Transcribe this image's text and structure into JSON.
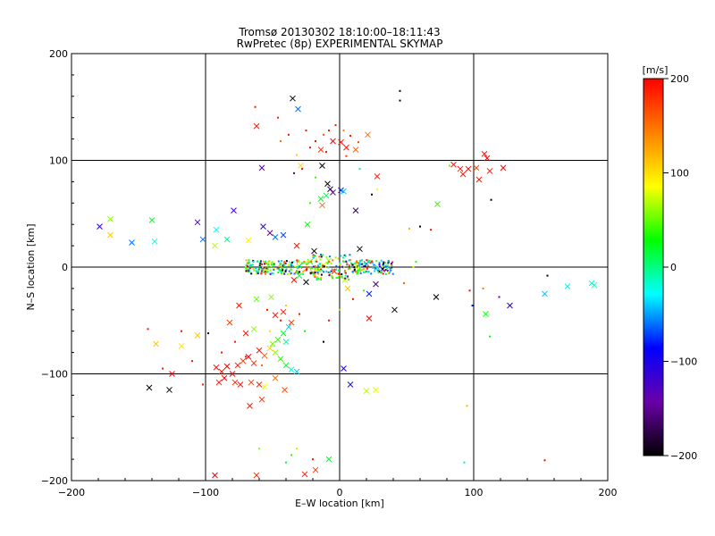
{
  "chart_data": {
    "type": "scatter",
    "title": "Tromsø 20130302 18:10:00–18:11:43",
    "subtitle": "RwPretec (8p) EXPERIMENTAL SKYMAP",
    "xlabel": "E–W location [km]",
    "ylabel": "N–S location [km]",
    "xlim": [
      -200,
      200
    ],
    "ylim": [
      -200,
      200
    ],
    "x_ticks": [
      "−200",
      "−100",
      "0",
      "100",
      "200"
    ],
    "y_ticks": [
      "−200",
      "−100",
      "0",
      "100",
      "200"
    ],
    "grid": true,
    "colorbar": {
      "label": "[m/s]",
      "range": [
        -200,
        200
      ],
      "ticks": [
        "200",
        "100",
        "0",
        "−100",
        "−200"
      ],
      "colormap": [
        "#000000",
        "#6a00a8",
        "#0000ff",
        "#00ffff",
        "#00ff00",
        "#ffff00",
        "#ff8000",
        "#ff0000"
      ]
    },
    "markers": [
      {
        "x": -179,
        "y": 38,
        "v": -110,
        "m": "x"
      },
      {
        "x": -171,
        "y": 45,
        "v": 60,
        "m": "x"
      },
      {
        "x": -171,
        "y": 30,
        "v": 110,
        "m": "x"
      },
      {
        "x": -155,
        "y": 23,
        "v": -60,
        "m": "x"
      },
      {
        "x": -140,
        "y": 44,
        "v": 20,
        "m": "x"
      },
      {
        "x": -138,
        "y": 24,
        "v": -20,
        "m": "x"
      },
      {
        "x": -106,
        "y": 42,
        "v": -120,
        "m": "x"
      },
      {
        "x": -102,
        "y": 26,
        "v": -60,
        "m": "x"
      },
      {
        "x": -93,
        "y": 20,
        "v": 70,
        "m": "x"
      },
      {
        "x": -92,
        "y": 35,
        "v": -30,
        "m": "x"
      },
      {
        "x": -84,
        "y": 26,
        "v": 0,
        "m": "x"
      },
      {
        "x": -79,
        "y": 53,
        "v": -120,
        "m": "x"
      },
      {
        "x": -68,
        "y": 25,
        "v": 90,
        "m": "x"
      },
      {
        "x": -57,
        "y": 38,
        "v": -110,
        "m": "x"
      },
      {
        "x": -52,
        "y": 32,
        "v": -140,
        "m": "x"
      },
      {
        "x": -48,
        "y": 28,
        "v": -60,
        "m": "x"
      },
      {
        "x": -42,
        "y": 30,
        "v": -70,
        "m": "x"
      },
      {
        "x": -32,
        "y": 20,
        "v": 190,
        "m": "x"
      },
      {
        "x": -24,
        "y": 40,
        "v": 30,
        "m": "x"
      },
      {
        "x": -19,
        "y": 15,
        "v": -200,
        "m": "x"
      },
      {
        "x": -58,
        "y": 93,
        "v": -130,
        "m": "x"
      },
      {
        "x": -35,
        "y": 158,
        "v": -200,
        "m": "x"
      },
      {
        "x": -31,
        "y": 148,
        "v": -60,
        "m": "x"
      },
      {
        "x": -62,
        "y": 132,
        "v": 190,
        "m": "x"
      },
      {
        "x": -29,
        "y": 95,
        "v": 100,
        "m": "x"
      },
      {
        "x": -13,
        "y": 95,
        "v": -200,
        "m": "x"
      },
      {
        "x": -9,
        "y": 78,
        "v": -200,
        "m": "x"
      },
      {
        "x": -7,
        "y": 73,
        "v": -180,
        "m": "x"
      },
      {
        "x": -5,
        "y": 70,
        "v": -150,
        "m": "x"
      },
      {
        "x": 1,
        "y": 72,
        "v": -80,
        "m": "x"
      },
      {
        "x": 3,
        "y": 71,
        "v": -40,
        "m": "x"
      },
      {
        "x": -10,
        "y": 67,
        "v": 10,
        "m": "x"
      },
      {
        "x": -14,
        "y": 64,
        "v": 20,
        "m": "x"
      },
      {
        "x": -13,
        "y": 58,
        "v": 150,
        "m": "x"
      },
      {
        "x": 12,
        "y": 53,
        "v": -170,
        "m": "x"
      },
      {
        "x": 28,
        "y": 85,
        "v": 190,
        "m": "x"
      },
      {
        "x": 21,
        "y": 124,
        "v": 150,
        "m": "x"
      },
      {
        "x": 1,
        "y": 117,
        "v": 190,
        "m": "x"
      },
      {
        "x": -5,
        "y": 118,
        "v": 200,
        "m": "x"
      },
      {
        "x": 5,
        "y": 112,
        "v": 190,
        "m": "x"
      },
      {
        "x": 12,
        "y": 110,
        "v": 160,
        "m": "x"
      },
      {
        "x": -14,
        "y": 110,
        "v": 180,
        "m": "x"
      },
      {
        "x": 85,
        "y": 96,
        "v": 190,
        "m": "x"
      },
      {
        "x": 90,
        "y": 92,
        "v": 190,
        "m": "x"
      },
      {
        "x": 96,
        "y": 92,
        "v": 200,
        "m": "x"
      },
      {
        "x": 92,
        "y": 87,
        "v": 190,
        "m": "x"
      },
      {
        "x": 102,
        "y": 93,
        "v": 170,
        "m": "x"
      },
      {
        "x": 108,
        "y": 106,
        "v": 200,
        "m": "x"
      },
      {
        "x": 110,
        "y": 102,
        "v": 200,
        "m": "x"
      },
      {
        "x": 104,
        "y": 82,
        "v": 190,
        "m": "x"
      },
      {
        "x": 112,
        "y": 90,
        "v": 190,
        "m": "x"
      },
      {
        "x": 122,
        "y": 93,
        "v": 200,
        "m": "x"
      },
      {
        "x": 73,
        "y": 59,
        "v": 40,
        "m": "x"
      },
      {
        "x": 15,
        "y": 17,
        "v": -200,
        "m": "x"
      },
      {
        "x": 22,
        "y": -25,
        "v": -80,
        "m": "x"
      },
      {
        "x": 27,
        "y": -16,
        "v": -160,
        "m": "x"
      },
      {
        "x": 41,
        "y": -40,
        "v": -200,
        "m": "x"
      },
      {
        "x": 72,
        "y": -28,
        "v": -200,
        "m": "x"
      },
      {
        "x": 109,
        "y": -44,
        "v": 30,
        "m": "x"
      },
      {
        "x": 127,
        "y": -36,
        "v": -100,
        "m": "x"
      },
      {
        "x": 153,
        "y": -25,
        "v": -40,
        "m": "x"
      },
      {
        "x": 170,
        "y": -18,
        "v": -30,
        "m": "x"
      },
      {
        "x": 188,
        "y": -15,
        "v": -20,
        "m": "x"
      },
      {
        "x": 190,
        "y": -17,
        "v": -10,
        "m": "x"
      },
      {
        "x": 22,
        "y": -48,
        "v": 200,
        "m": "x"
      },
      {
        "x": 20,
        "y": -116,
        "v": 70,
        "m": "x"
      },
      {
        "x": 27,
        "y": -115,
        "v": 80,
        "m": "x"
      },
      {
        "x": 8,
        "y": -110,
        "v": -90,
        "m": "x"
      },
      {
        "x": 3,
        "y": -95,
        "v": -100,
        "m": "x"
      },
      {
        "x": -41,
        "y": -115,
        "v": 170,
        "m": "x"
      },
      {
        "x": -58,
        "y": -124,
        "v": 180,
        "m": "x"
      },
      {
        "x": -67,
        "y": -130,
        "v": 190,
        "m": "x"
      },
      {
        "x": -92,
        "y": -94,
        "v": 200,
        "m": "x"
      },
      {
        "x": -88,
        "y": -98,
        "v": 190,
        "m": "x"
      },
      {
        "x": -84,
        "y": -93,
        "v": 200,
        "m": "x"
      },
      {
        "x": -80,
        "y": -100,
        "v": 200,
        "m": "x"
      },
      {
        "x": -76,
        "y": -92,
        "v": 190,
        "m": "x"
      },
      {
        "x": -72,
        "y": -88,
        "v": 170,
        "m": "x"
      },
      {
        "x": -68,
        "y": -84,
        "v": 200,
        "m": "x"
      },
      {
        "x": -64,
        "y": -90,
        "v": 180,
        "m": "x"
      },
      {
        "x": -60,
        "y": -78,
        "v": 190,
        "m": "x"
      },
      {
        "x": -56,
        "y": -83,
        "v": 160,
        "m": "x"
      },
      {
        "x": -52,
        "y": -76,
        "v": 110,
        "m": "x"
      },
      {
        "x": -48,
        "y": -80,
        "v": 60,
        "m": "x"
      },
      {
        "x": -44,
        "y": -86,
        "v": 40,
        "m": "x"
      },
      {
        "x": -40,
        "y": -92,
        "v": 20,
        "m": "x"
      },
      {
        "x": -36,
        "y": -96,
        "v": -20,
        "m": "x"
      },
      {
        "x": -32,
        "y": -98,
        "v": -40,
        "m": "x"
      },
      {
        "x": -86,
        "y": -104,
        "v": 200,
        "m": "x"
      },
      {
        "x": -90,
        "y": -108,
        "v": 190,
        "m": "x"
      },
      {
        "x": -78,
        "y": -108,
        "v": 180,
        "m": "x"
      },
      {
        "x": -74,
        "y": -110,
        "v": 200,
        "m": "x"
      },
      {
        "x": -66,
        "y": -108,
        "v": 170,
        "m": "x"
      },
      {
        "x": -60,
        "y": -110,
        "v": 190,
        "m": "x"
      },
      {
        "x": -56,
        "y": -112,
        "v": 80,
        "m": "x"
      },
      {
        "x": -48,
        "y": -104,
        "v": 150,
        "m": "x"
      },
      {
        "x": -42,
        "y": -62,
        "v": 20,
        "m": "x"
      },
      {
        "x": -46,
        "y": -68,
        "v": 40,
        "m": "x"
      },
      {
        "x": -50,
        "y": -72,
        "v": 50,
        "m": "x"
      },
      {
        "x": -40,
        "y": -70,
        "v": -10,
        "m": "x"
      },
      {
        "x": -38,
        "y": -56,
        "v": -40,
        "m": "x"
      },
      {
        "x": -64,
        "y": -58,
        "v": 60,
        "m": "x"
      },
      {
        "x": -70,
        "y": -62,
        "v": 190,
        "m": "x"
      },
      {
        "x": -82,
        "y": -52,
        "v": 170,
        "m": "x"
      },
      {
        "x": -118,
        "y": -74,
        "v": 100,
        "m": "x"
      },
      {
        "x": -125,
        "y": -100,
        "v": 200,
        "m": "x"
      },
      {
        "x": -142,
        "y": -113,
        "v": -200,
        "m": "x"
      },
      {
        "x": -127,
        "y": -115,
        "v": -200,
        "m": "x"
      },
      {
        "x": -137,
        "y": -72,
        "v": 110,
        "m": "x"
      },
      {
        "x": -106,
        "y": -64,
        "v": 110,
        "m": "x"
      },
      {
        "x": -75,
        "y": -36,
        "v": 190,
        "m": "x"
      },
      {
        "x": -62,
        "y": -30,
        "v": 50,
        "m": "x"
      },
      {
        "x": -51,
        "y": -28,
        "v": 60,
        "m": "x"
      },
      {
        "x": -48,
        "y": -45,
        "v": 190,
        "m": "x"
      },
      {
        "x": -42,
        "y": -42,
        "v": 190,
        "m": "x"
      },
      {
        "x": -36,
        "y": -52,
        "v": 170,
        "m": "x"
      },
      {
        "x": -34,
        "y": -12,
        "v": 190,
        "m": "x"
      },
      {
        "x": -30,
        "y": -8,
        "v": 20,
        "m": "x"
      },
      {
        "x": -25,
        "y": -14,
        "v": -200,
        "m": "x"
      },
      {
        "x": -20,
        "y": -5,
        "v": 120,
        "m": "x"
      },
      {
        "x": -16,
        "y": -2,
        "v": 30,
        "m": "x"
      },
      {
        "x": -12,
        "y": 2,
        "v": 90,
        "m": "x"
      },
      {
        "x": -8,
        "y": 6,
        "v": 60,
        "m": "x"
      },
      {
        "x": -4,
        "y": -4,
        "v": 180,
        "m": "x"
      },
      {
        "x": 0,
        "y": -8,
        "v": 130,
        "m": "x"
      },
      {
        "x": 4,
        "y": -12,
        "v": 70,
        "m": "x"
      },
      {
        "x": 6,
        "y": -20,
        "v": 110,
        "m": "x"
      },
      {
        "x": -30,
        "y": 1,
        "v": -50,
        "m": "x"
      },
      {
        "x": -36,
        "y": 3,
        "v": -10,
        "m": "x"
      },
      {
        "x": -22,
        "y": 5,
        "v": 40,
        "m": "x"
      },
      {
        "x": 10,
        "y": 2,
        "v": -40,
        "m": "x"
      },
      {
        "x": 14,
        "y": -2,
        "v": 20,
        "m": "x"
      },
      {
        "x": 20,
        "y": 3,
        "v": -60,
        "m": "x"
      },
      {
        "x": 28,
        "y": 0,
        "v": -40,
        "m": "x"
      },
      {
        "x": 32,
        "y": -2,
        "v": -80,
        "m": "x"
      },
      {
        "x": -8,
        "y": -180,
        "v": 20,
        "m": "x"
      },
      {
        "x": -93,
        "y": -195,
        "v": 200,
        "m": "x"
      },
      {
        "x": -62,
        "y": -195,
        "v": 180,
        "m": "x"
      },
      {
        "x": -26,
        "y": -194,
        "v": 190,
        "m": "x"
      },
      {
        "x": -18,
        "y": -190,
        "v": 170,
        "m": "x"
      },
      {
        "x": 45,
        "y": 165,
        "v": -200,
        "m": "d"
      },
      {
        "x": 45,
        "y": 156,
        "v": -200,
        "m": "d"
      },
      {
        "x": 113,
        "y": 63,
        "v": -200,
        "m": "d"
      },
      {
        "x": 60,
        "y": 38,
        "v": -200,
        "m": "d"
      },
      {
        "x": 68,
        "y": 35,
        "v": 190,
        "m": "d"
      },
      {
        "x": 82,
        "y": 95,
        "v": 50,
        "m": "d"
      },
      {
        "x": 52,
        "y": 36,
        "v": 120,
        "m": "d"
      },
      {
        "x": 55,
        "y": 0,
        "v": 80,
        "m": "d"
      },
      {
        "x": 57,
        "y": 5,
        "v": 40,
        "m": "d"
      },
      {
        "x": 48,
        "y": -15,
        "v": 160,
        "m": "d"
      },
      {
        "x": 97,
        "y": -22,
        "v": 200,
        "m": "d"
      },
      {
        "x": 99,
        "y": -36,
        "v": -80,
        "m": "d"
      },
      {
        "x": 107,
        "y": -20,
        "v": 150,
        "m": "d"
      },
      {
        "x": 112,
        "y": -65,
        "v": 30,
        "m": "d"
      },
      {
        "x": 119,
        "y": -28,
        "v": -140,
        "m": "d"
      },
      {
        "x": 155,
        "y": -8,
        "v": -200,
        "m": "d"
      },
      {
        "x": 95,
        "y": -130,
        "v": 120,
        "m": "d"
      },
      {
        "x": 93,
        "y": -183,
        "v": 0,
        "m": "d"
      },
      {
        "x": 153,
        "y": -181,
        "v": 200,
        "m": "d"
      },
      {
        "x": -63,
        "y": 150,
        "v": 190,
        "m": "d"
      },
      {
        "x": -46,
        "y": 140,
        "v": 190,
        "m": "d"
      },
      {
        "x": -38,
        "y": 124,
        "v": 190,
        "m": "d"
      },
      {
        "x": -44,
        "y": 118,
        "v": 150,
        "m": "d"
      },
      {
        "x": -25,
        "y": 128,
        "v": 190,
        "m": "d"
      },
      {
        "x": -18,
        "y": 118,
        "v": 190,
        "m": "d"
      },
      {
        "x": -12,
        "y": 124,
        "v": 160,
        "m": "d"
      },
      {
        "x": -8,
        "y": 128,
        "v": 190,
        "m": "d"
      },
      {
        "x": -3,
        "y": 133,
        "v": 190,
        "m": "d"
      },
      {
        "x": 3,
        "y": 128,
        "v": 140,
        "m": "d"
      },
      {
        "x": 8,
        "y": 123,
        "v": 190,
        "m": "d"
      },
      {
        "x": 14,
        "y": 117,
        "v": 170,
        "m": "d"
      },
      {
        "x": -22,
        "y": 112,
        "v": 190,
        "m": "d"
      },
      {
        "x": -10,
        "y": 108,
        "v": 190,
        "m": "d"
      },
      {
        "x": 5,
        "y": 104,
        "v": 180,
        "m": "d"
      },
      {
        "x": -32,
        "y": 105,
        "v": 110,
        "m": "d"
      },
      {
        "x": -34,
        "y": 88,
        "v": -160,
        "m": "d"
      },
      {
        "x": -28,
        "y": 92,
        "v": 190,
        "m": "d"
      },
      {
        "x": -18,
        "y": 84,
        "v": 40,
        "m": "d"
      },
      {
        "x": 15,
        "y": 92,
        "v": 0,
        "m": "d"
      },
      {
        "x": 24,
        "y": 68,
        "v": -200,
        "m": "d"
      },
      {
        "x": 28,
        "y": 73,
        "v": 90,
        "m": "d"
      },
      {
        "x": -110,
        "y": -88,
        "v": 190,
        "m": "d"
      },
      {
        "x": -118,
        "y": -60,
        "v": 190,
        "m": "d"
      },
      {
        "x": -143,
        "y": -58,
        "v": 190,
        "m": "d"
      },
      {
        "x": -132,
        "y": -95,
        "v": 190,
        "m": "d"
      },
      {
        "x": -102,
        "y": -110,
        "v": 190,
        "m": "d"
      },
      {
        "x": -88,
        "y": -80,
        "v": 190,
        "m": "d"
      },
      {
        "x": -78,
        "y": -70,
        "v": 190,
        "m": "d"
      },
      {
        "x": -70,
        "y": -84,
        "v": 190,
        "m": "d"
      },
      {
        "x": -58,
        "y": -92,
        "v": 150,
        "m": "d"
      },
      {
        "x": -52,
        "y": -60,
        "v": 100,
        "m": "d"
      },
      {
        "x": -44,
        "y": -50,
        "v": 190,
        "m": "d"
      },
      {
        "x": -54,
        "y": -40,
        "v": 190,
        "m": "d"
      },
      {
        "x": -40,
        "y": -36,
        "v": 110,
        "m": "d"
      },
      {
        "x": -30,
        "y": -44,
        "v": 190,
        "m": "d"
      },
      {
        "x": -26,
        "y": -60,
        "v": 30,
        "m": "d"
      },
      {
        "x": -12,
        "y": -70,
        "v": -200,
        "m": "d"
      },
      {
        "x": -8,
        "y": -50,
        "v": 190,
        "m": "d"
      },
      {
        "x": 0,
        "y": -40,
        "v": 60,
        "m": "d"
      },
      {
        "x": 10,
        "y": -30,
        "v": 190,
        "m": "d"
      },
      {
        "x": 18,
        "y": -22,
        "v": 40,
        "m": "d"
      },
      {
        "x": -60,
        "y": -170,
        "v": 60,
        "m": "d"
      },
      {
        "x": -40,
        "y": -183,
        "v": 20,
        "m": "d"
      },
      {
        "x": -36,
        "y": -176,
        "v": 40,
        "m": "d"
      },
      {
        "x": -32,
        "y": -170,
        "v": 70,
        "m": "d"
      },
      {
        "x": -20,
        "y": -180,
        "v": 190,
        "m": "d"
      },
      {
        "x": -98,
        "y": -62,
        "v": -200,
        "m": "d"
      },
      {
        "x": -22,
        "y": 60,
        "v": 40,
        "m": "d"
      }
    ],
    "dense_cluster": {
      "note": "dense band of small dots around y≈0, x from −70 to 40",
      "x_range": [
        -70,
        40
      ],
      "y_range": [
        -12,
        12
      ],
      "v_values": [
        -60,
        -40,
        0,
        20,
        40,
        60,
        80,
        120,
        150,
        190,
        -120,
        -200
      ]
    }
  }
}
